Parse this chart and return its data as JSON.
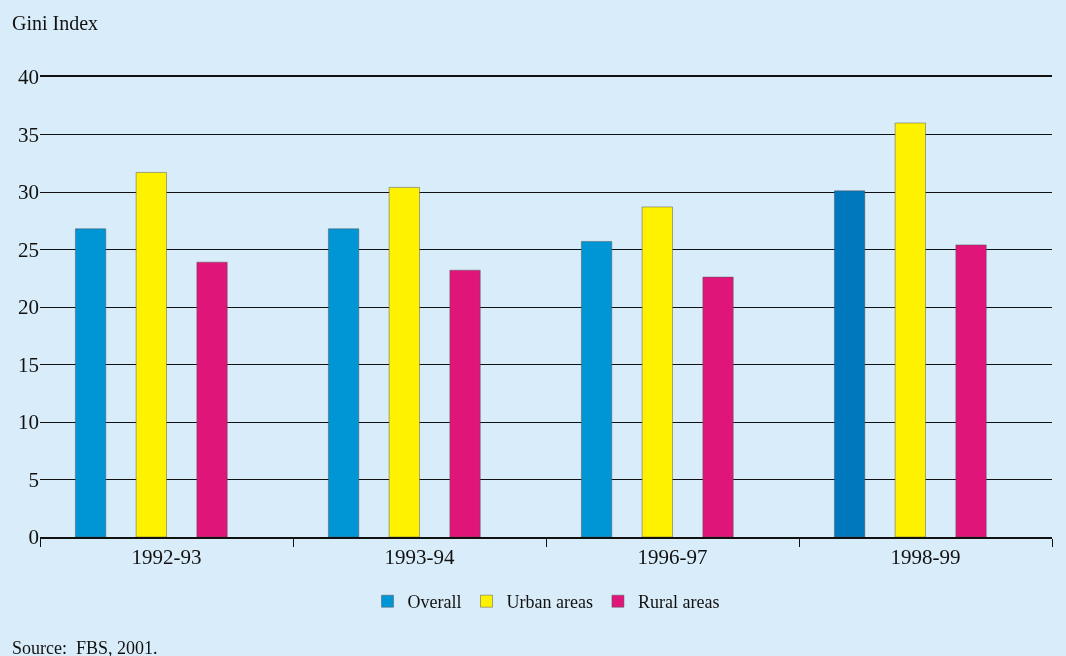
{
  "chart_data": {
    "type": "bar",
    "ylabel": "Gini Index",
    "categories": [
      "1992-93",
      "1993-94",
      "1996-97",
      "1998-99"
    ],
    "series": [
      {
        "name": "Overall",
        "color": "#0096d6",
        "colors": [
          "#0096d6",
          "#0096d6",
          "#0096d6",
          "#0078bd"
        ],
        "values": [
          26.8,
          26.8,
          25.7,
          30.1
        ]
      },
      {
        "name": "Urban areas",
        "color": "#fff200",
        "values": [
          31.7,
          30.4,
          28.7,
          36.0
        ]
      },
      {
        "name": "Rural areas",
        "color": "#e0157a",
        "values": [
          23.9,
          23.2,
          22.6,
          25.4
        ]
      }
    ],
    "ylim": [
      0,
      40
    ],
    "yticks": [
      0,
      5,
      10,
      15,
      20,
      25,
      30,
      35,
      40
    ],
    "grid": "y",
    "legend": "bottom",
    "annotations": [
      "Source:  FBS, 2001."
    ]
  }
}
